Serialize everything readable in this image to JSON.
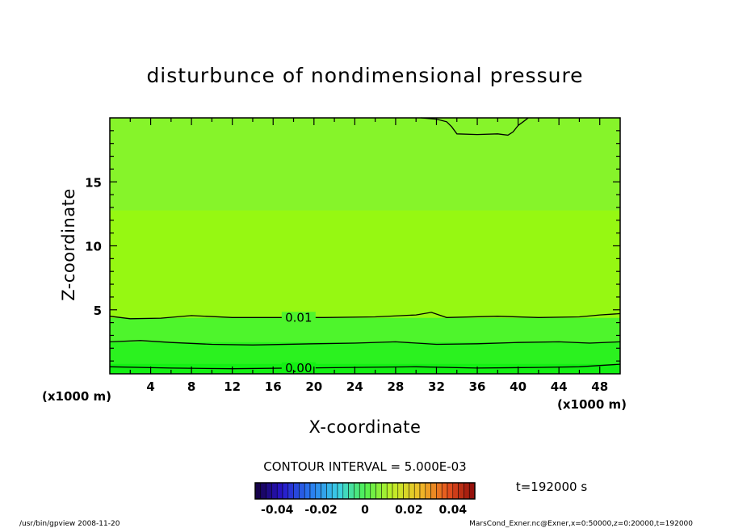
{
  "chart_data": {
    "type": "heatmap",
    "title": "disturbunce of nondimensional pressure",
    "xlabel": "X-coordinate",
    "ylabel": "Z-coordinate",
    "x_unit": "(x1000 m)",
    "y_unit": "(x1000 m)",
    "xlim": [
      0,
      50
    ],
    "ylim": [
      0,
      20
    ],
    "xticks": [
      4,
      8,
      12,
      16,
      20,
      24,
      28,
      32,
      36,
      40,
      44,
      48
    ],
    "yticks": [
      5,
      10,
      15
    ],
    "contour_interval": "CONTOUR INTERVAL = 5.000E-03",
    "time": "t=192000 s",
    "colorbar": {
      "ticks": [
        "-0.04",
        "-0.02",
        "0",
        "0.02",
        "0.04"
      ],
      "range": [
        -0.05,
        0.05
      ]
    },
    "fill_bands": [
      {
        "z": [
          0,
          0.8
        ],
        "color": "#13f013"
      },
      {
        "z": [
          0.8,
          2.5
        ],
        "color": "#2bf21f"
      },
      {
        "z": [
          2.5,
          4.4
        ],
        "color": "#4ef52c"
      },
      {
        "z": [
          4.4,
          12.8
        ],
        "color": "#96f812"
      },
      {
        "z": [
          12.8,
          20
        ],
        "color": "#86f42a"
      }
    ],
    "contours": [
      {
        "level": "0.00",
        "label": "0.00",
        "label_x": 18.5,
        "points": [
          [
            0,
            0.55
          ],
          [
            6,
            0.45
          ],
          [
            12,
            0.4
          ],
          [
            18,
            0.45
          ],
          [
            24,
            0.5
          ],
          [
            30,
            0.55
          ],
          [
            36,
            0.45
          ],
          [
            42,
            0.5
          ],
          [
            46,
            0.55
          ],
          [
            50,
            0.75
          ]
        ]
      },
      {
        "level": "0.005",
        "label": "",
        "points": [
          [
            0,
            2.5
          ],
          [
            3,
            2.6
          ],
          [
            6,
            2.45
          ],
          [
            10,
            2.3
          ],
          [
            14,
            2.25
          ],
          [
            20,
            2.35
          ],
          [
            24,
            2.4
          ],
          [
            28,
            2.5
          ],
          [
            32,
            2.3
          ],
          [
            36,
            2.35
          ],
          [
            40,
            2.45
          ],
          [
            44,
            2.5
          ],
          [
            47,
            2.4
          ],
          [
            50,
            2.5
          ]
        ]
      },
      {
        "level": "0.01",
        "label": "0.01",
        "label_x": 18.5,
        "points": [
          [
            0,
            4.5
          ],
          [
            2,
            4.3
          ],
          [
            5,
            4.35
          ],
          [
            8,
            4.55
          ],
          [
            12,
            4.4
          ],
          [
            16,
            4.4
          ],
          [
            21,
            4.4
          ],
          [
            26,
            4.45
          ],
          [
            30,
            4.6
          ],
          [
            31.5,
            4.8
          ],
          [
            33,
            4.4
          ],
          [
            38,
            4.5
          ],
          [
            42,
            4.4
          ],
          [
            46,
            4.45
          ],
          [
            48,
            4.6
          ],
          [
            50,
            4.7
          ]
        ]
      },
      {
        "level": "top",
        "label": "",
        "points": [
          [
            30.5,
            20
          ],
          [
            32,
            19.9
          ],
          [
            33,
            19.7
          ],
          [
            33.5,
            19.3
          ],
          [
            34,
            18.75
          ],
          [
            36,
            18.7
          ],
          [
            38,
            18.75
          ],
          [
            39,
            18.65
          ],
          [
            39.5,
            18.9
          ],
          [
            40,
            19.4
          ],
          [
            40.5,
            19.7
          ],
          [
            41,
            20
          ]
        ]
      }
    ]
  },
  "footer": {
    "left": "/usr/bin/gpview   2008-11-20",
    "right": "MarsCond_Exner.nc@Exner,x=0:50000,z=0:20000,t=192000"
  }
}
